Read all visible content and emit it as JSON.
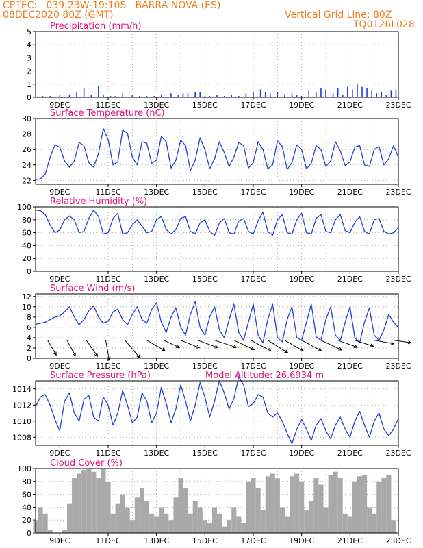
{
  "header": {
    "line1": "CPTEC:   039:23W-19:10S   BARRA NOVA (ES)",
    "line2_left": "08DEC2020 80Z (GMT)",
    "line2_right": "Vertical Grid Line: 80Z",
    "code": "TQ0126L028"
  },
  "colors": {
    "header": "#f07d1e",
    "panel_title": "#e0127a",
    "line": "#1f3fd9",
    "cloud": "#a9a9a9",
    "grid": "#9a9a9a"
  },
  "chart_data": [
    {
      "id": "precip",
      "type": "bar",
      "title": "Precipitation (mm/h)",
      "xlim": [
        0,
        15
      ],
      "ylim": [
        0,
        5
      ],
      "yticks": [
        0,
        1,
        2,
        3,
        4,
        5
      ],
      "xticks": [
        1,
        3,
        5,
        7,
        9,
        11,
        13,
        15
      ],
      "xticklabels": [
        "9DEC",
        "11DEC",
        "13DEC",
        "15DEC",
        "17DEC",
        "19DEC",
        "21DEC",
        "23DEC"
      ],
      "x": [
        0.3,
        0.6,
        1.0,
        1.4,
        1.7,
        2.0,
        2.3,
        2.6,
        2.8,
        3.1,
        3.3,
        3.6,
        4.0,
        4.3,
        4.6,
        4.9,
        5.2,
        5.6,
        5.9,
        6.1,
        6.3,
        6.6,
        6.8,
        7.0,
        7.2,
        7.5,
        7.8,
        8.1,
        8.4,
        8.7,
        9.0,
        9.3,
        9.5,
        9.7,
        10.0,
        10.3,
        10.6,
        10.8,
        11.0,
        11.3,
        11.6,
        11.8,
        12.0,
        12.3,
        12.5,
        12.7,
        12.9,
        13.1,
        13.3,
        13.5,
        13.7,
        13.9,
        14.1,
        14.3,
        14.5,
        14.7,
        14.9
      ],
      "values": [
        0.1,
        0.1,
        0.2,
        0.2,
        0.4,
        0.7,
        0.2,
        0.9,
        0.2,
        0.1,
        0.1,
        0.3,
        0.2,
        0.1,
        0.1,
        0.1,
        0.2,
        0.3,
        0.2,
        0.3,
        0.3,
        0.4,
        0.4,
        0.1,
        0.1,
        0.2,
        0.1,
        0.2,
        0.1,
        0.3,
        0.4,
        0.6,
        0.4,
        0.3,
        0.4,
        0.2,
        0.3,
        0.2,
        0.1,
        0.5,
        0.4,
        0.7,
        0.6,
        0.3,
        0.7,
        0.2,
        0.8,
        0.6,
        1.0,
        0.8,
        0.7,
        0.5,
        0.3,
        0.4,
        0.2,
        0.5,
        0.6
      ]
    },
    {
      "id": "temp",
      "type": "line",
      "title": "Surface Temperature (nC)",
      "xlim": [
        0,
        15
      ],
      "ylim": [
        21.5,
        30
      ],
      "yticks": [
        22,
        24,
        26,
        28,
        30
      ],
      "xticks": [
        1,
        3,
        5,
        7,
        9,
        11,
        13,
        15
      ],
      "xticklabels": [
        "9DEC",
        "11DEC",
        "13DEC",
        "15DEC",
        "17DEC",
        "19DEC",
        "21DEC",
        "23DEC"
      ],
      "x": [
        0.0,
        0.2,
        0.4,
        0.6,
        0.8,
        1.0,
        1.2,
        1.4,
        1.6,
        1.8,
        2.0,
        2.2,
        2.4,
        2.6,
        2.8,
        3.0,
        3.2,
        3.4,
        3.6,
        3.8,
        4.0,
        4.2,
        4.4,
        4.6,
        4.8,
        5.0,
        5.2,
        5.4,
        5.6,
        5.8,
        6.0,
        6.2,
        6.4,
        6.6,
        6.8,
        7.0,
        7.2,
        7.4,
        7.6,
        7.8,
        8.0,
        8.2,
        8.4,
        8.6,
        8.8,
        9.0,
        9.2,
        9.4,
        9.6,
        9.8,
        10.0,
        10.2,
        10.4,
        10.6,
        10.8,
        11.0,
        11.2,
        11.4,
        11.6,
        11.8,
        12.0,
        12.2,
        12.4,
        12.6,
        12.8,
        13.0,
        13.2,
        13.4,
        13.6,
        13.8,
        14.0,
        14.2,
        14.4,
        14.6,
        14.8,
        15.0
      ],
      "values": [
        22.1,
        22.2,
        22.8,
        25.0,
        26.6,
        26.3,
        24.5,
        23.7,
        24.5,
        26.9,
        26.5,
        24.3,
        23.7,
        25.5,
        28.7,
        27.3,
        24.0,
        24.4,
        28.5,
        28.1,
        25.0,
        24.0,
        27.0,
        26.8,
        24.2,
        24.6,
        27.7,
        27.0,
        23.6,
        24.6,
        27.2,
        26.5,
        23.3,
        24.6,
        27.5,
        26.0,
        23.5,
        24.8,
        27.0,
        25.6,
        23.8,
        25.0,
        26.9,
        26.5,
        23.6,
        24.3,
        27.0,
        26.0,
        23.5,
        24.0,
        27.1,
        26.4,
        23.4,
        24.3,
        26.6,
        26.0,
        23.5,
        24.2,
        26.5,
        26.0,
        23.8,
        24.5,
        27.0,
        25.8,
        23.9,
        24.4,
        26.3,
        26.5,
        24.0,
        23.8,
        26.0,
        26.4,
        24.0,
        24.8,
        26.5,
        25.0
      ]
    },
    {
      "id": "rh",
      "type": "line",
      "title": "Relative Humidity (%)",
      "xlim": [
        0,
        15
      ],
      "ylim": [
        0,
        100
      ],
      "yticks": [
        0,
        20,
        40,
        60,
        80,
        100
      ],
      "xticks": [
        1,
        3,
        5,
        7,
        9,
        11,
        13,
        15
      ],
      "xticklabels": [
        "9DEC",
        "11DEC",
        "13DEC",
        "15DEC",
        "17DEC",
        "19DEC",
        "21DEC",
        "23DEC"
      ],
      "x": [
        0.0,
        0.2,
        0.4,
        0.6,
        0.8,
        1.0,
        1.2,
        1.4,
        1.6,
        1.8,
        2.0,
        2.2,
        2.4,
        2.6,
        2.8,
        3.0,
        3.2,
        3.4,
        3.6,
        3.8,
        4.0,
        4.2,
        4.4,
        4.6,
        4.8,
        5.0,
        5.2,
        5.4,
        5.6,
        5.8,
        6.0,
        6.2,
        6.4,
        6.6,
        6.8,
        7.0,
        7.2,
        7.4,
        7.6,
        7.8,
        8.0,
        8.2,
        8.4,
        8.6,
        8.8,
        9.0,
        9.2,
        9.4,
        9.6,
        9.8,
        10.0,
        10.2,
        10.4,
        10.6,
        10.8,
        11.0,
        11.2,
        11.4,
        11.6,
        11.8,
        12.0,
        12.2,
        12.4,
        12.6,
        12.8,
        13.0,
        13.2,
        13.4,
        13.6,
        13.8,
        14.0,
        14.2,
        14.4,
        14.6,
        14.8,
        15.0
      ],
      "values": [
        95,
        94,
        88,
        72,
        60,
        64,
        80,
        86,
        80,
        60,
        62,
        82,
        95,
        85,
        58,
        60,
        82,
        90,
        58,
        60,
        72,
        80,
        70,
        60,
        62,
        80,
        85,
        65,
        58,
        65,
        82,
        85,
        62,
        58,
        75,
        80,
        62,
        56,
        75,
        82,
        60,
        58,
        78,
        82,
        62,
        58,
        78,
        92,
        62,
        56,
        80,
        88,
        60,
        58,
        80,
        90,
        60,
        58,
        82,
        88,
        62,
        60,
        80,
        88,
        63,
        60,
        76,
        85,
        62,
        58,
        80,
        82,
        62,
        58,
        60,
        68
      ]
    },
    {
      "id": "wind",
      "type": "line",
      "title": "Surface Wind (m/s)",
      "xlim": [
        0,
        15
      ],
      "ylim": [
        0,
        12.5
      ],
      "yticks": [
        0,
        2,
        4,
        6,
        8,
        10,
        12
      ],
      "xticks": [
        1,
        3,
        5,
        7,
        9,
        11,
        13,
        15
      ],
      "xticklabels": [
        "9DEC",
        "11DEC",
        "13DEC",
        "15DEC",
        "17DEC",
        "19DEC",
        "21DEC",
        "23DEC"
      ],
      "x": [
        0.0,
        0.2,
        0.4,
        0.6,
        0.8,
        1.0,
        1.2,
        1.4,
        1.6,
        1.8,
        2.0,
        2.2,
        2.4,
        2.6,
        2.8,
        3.0,
        3.2,
        3.4,
        3.6,
        3.8,
        4.0,
        4.2,
        4.4,
        4.6,
        4.8,
        5.0,
        5.2,
        5.4,
        5.6,
        5.8,
        6.0,
        6.2,
        6.4,
        6.6,
        6.8,
        7.0,
        7.2,
        7.4,
        7.6,
        7.8,
        8.0,
        8.2,
        8.4,
        8.6,
        8.8,
        9.0,
        9.2,
        9.4,
        9.6,
        9.8,
        10.0,
        10.2,
        10.4,
        10.6,
        10.8,
        11.0,
        11.2,
        11.4,
        11.6,
        11.8,
        12.0,
        12.2,
        12.4,
        12.6,
        12.8,
        13.0,
        13.2,
        13.4,
        13.6,
        13.8,
        14.0,
        14.2,
        14.4,
        14.6,
        14.8,
        15.0
      ],
      "values": [
        6.6,
        6.8,
        7.0,
        7.5,
        8.0,
        8.2,
        9.0,
        10.0,
        8.0,
        6.5,
        7.5,
        9.2,
        10.2,
        8.0,
        6.8,
        7.2,
        9.0,
        9.5,
        7.5,
        6.5,
        8.5,
        10.0,
        7.5,
        6.8,
        9.5,
        10.8,
        7.0,
        5.0,
        8.0,
        9.8,
        6.0,
        4.5,
        8.5,
        11.0,
        6.0,
        4.5,
        8.0,
        10.0,
        5.5,
        4.0,
        7.5,
        10.5,
        5.0,
        3.5,
        7.0,
        10.5,
        4.5,
        3.0,
        7.5,
        10.5,
        4.0,
        3.2,
        7.5,
        10.0,
        4.0,
        3.5,
        7.0,
        10.5,
        4.2,
        3.5,
        7.5,
        10.0,
        4.5,
        3.5,
        7.0,
        10.0,
        4.0,
        3.0,
        7.0,
        9.8,
        4.5,
        3.5,
        5.5,
        8.5,
        7.0,
        6.0
      ],
      "arrows": {
        "x": [
          0.5,
          1.3,
          2.1,
          2.9,
          3.7,
          4.6,
          5.3,
          6.0,
          6.7,
          7.4,
          8.2,
          8.9,
          9.6,
          10.3,
          11.0,
          11.8,
          12.5,
          13.2,
          14.0,
          14.8
        ],
        "base_y": 3.5,
        "speed": [
          6.0,
          6.2,
          6.8,
          7.0,
          8.0,
          7.2,
          6.0,
          7.0,
          7.5,
          8.0,
          7.8,
          8.0,
          8.2,
          7.5,
          7.8,
          8.0,
          7.2,
          6.8,
          7.0,
          6.2
        ],
        "dir_deg": [
          30,
          28,
          35,
          10,
          40,
          60,
          65,
          68,
          70,
          72,
          65,
          62,
          58,
          60,
          62,
          65,
          70,
          72,
          80,
          82
        ]
      }
    },
    {
      "id": "pressure",
      "type": "line",
      "title": "Surface Pressure (hPa)",
      "annotation": "Model Altitude: 26.6934 m",
      "xlim": [
        0,
        15
      ],
      "ylim": [
        1007,
        1015
      ],
      "yticks": [
        1008,
        1010,
        1012,
        1014
      ],
      "xticks": [
        1,
        3,
        5,
        7,
        9,
        11,
        13,
        15
      ],
      "xticklabels": [
        "9DEC",
        "11DEC",
        "13DEC",
        "15DEC",
        "17DEC",
        "19DEC",
        "21DEC",
        "23DEC"
      ],
      "x": [
        0.0,
        0.2,
        0.4,
        0.6,
        0.8,
        1.0,
        1.2,
        1.4,
        1.6,
        1.8,
        2.0,
        2.2,
        2.4,
        2.6,
        2.8,
        3.0,
        3.2,
        3.4,
        3.6,
        3.8,
        4.0,
        4.2,
        4.4,
        4.6,
        4.8,
        5.0,
        5.2,
        5.4,
        5.6,
        5.8,
        6.0,
        6.2,
        6.4,
        6.6,
        6.8,
        7.0,
        7.2,
        7.4,
        7.6,
        7.8,
        8.0,
        8.2,
        8.4,
        8.6,
        8.8,
        9.0,
        9.2,
        9.4,
        9.6,
        9.8,
        10.0,
        10.2,
        10.4,
        10.6,
        10.8,
        11.0,
        11.2,
        11.4,
        11.6,
        11.8,
        12.0,
        12.2,
        12.4,
        12.6,
        12.8,
        13.0,
        13.2,
        13.4,
        13.6,
        13.8,
        14.0,
        14.2,
        14.4,
        14.6,
        14.8,
        15.0
      ],
      "values": [
        1011.8,
        1013.0,
        1013.3,
        1012.0,
        1010.2,
        1008.8,
        1012.5,
        1013.5,
        1011.0,
        1010.0,
        1012.7,
        1013.2,
        1010.5,
        1010.0,
        1013.0,
        1012.0,
        1009.5,
        1011.0,
        1013.8,
        1012.0,
        1009.8,
        1010.5,
        1013.5,
        1012.5,
        1009.8,
        1011.0,
        1014.2,
        1012.2,
        1009.8,
        1011.5,
        1014.5,
        1012.5,
        1010.0,
        1012.0,
        1014.8,
        1013.0,
        1010.5,
        1012.5,
        1015.0,
        1013.5,
        1011.5,
        1012.8,
        1015.5,
        1014.5,
        1011.8,
        1012.2,
        1013.3,
        1013.0,
        1011.0,
        1010.5,
        1011.0,
        1010.0,
        1008.5,
        1007.2,
        1009.0,
        1010.2,
        1009.0,
        1007.6,
        1009.5,
        1010.3,
        1008.8,
        1007.8,
        1009.5,
        1010.5,
        1009.0,
        1008.0,
        1010.0,
        1011.2,
        1009.5,
        1008.0,
        1010.0,
        1011.0,
        1009.0,
        1008.2,
        1009.0,
        1010.3
      ]
    },
    {
      "id": "cloud",
      "type": "area",
      "title": "Cloud Cover (%)",
      "xlim": [
        0,
        15
      ],
      "ylim": [
        0,
        100
      ],
      "yticks": [
        0,
        20,
        40,
        60,
        80,
        100
      ],
      "xticks": [
        1,
        3,
        5,
        7,
        9,
        11,
        13,
        15
      ],
      "xticklabels": [
        "9DEC",
        "11DEC",
        "13DEC",
        "15DEC",
        "17DEC",
        "19DEC",
        "21DEC",
        "23DEC"
      ],
      "x": [
        0.0,
        0.2,
        0.4,
        0.6,
        0.8,
        1.0,
        1.2,
        1.4,
        1.6,
        1.8,
        2.0,
        2.2,
        2.4,
        2.6,
        2.8,
        3.0,
        3.2,
        3.4,
        3.6,
        3.8,
        4.0,
        4.2,
        4.4,
        4.6,
        4.8,
        5.0,
        5.2,
        5.4,
        5.6,
        5.8,
        6.0,
        6.2,
        6.4,
        6.6,
        6.8,
        7.0,
        7.2,
        7.4,
        7.6,
        7.8,
        8.0,
        8.2,
        8.4,
        8.6,
        8.8,
        9.0,
        9.2,
        9.4,
        9.6,
        9.8,
        10.0,
        10.2,
        10.4,
        10.6,
        10.8,
        11.0,
        11.2,
        11.4,
        11.6,
        11.8,
        12.0,
        12.2,
        12.4,
        12.6,
        12.8,
        13.0,
        13.2,
        13.4,
        13.6,
        13.8,
        14.0,
        14.2,
        14.4,
        14.6,
        14.8,
        15.0
      ],
      "values": [
        20,
        40,
        30,
        5,
        0,
        0,
        5,
        45,
        85,
        92,
        98,
        100,
        95,
        85,
        100,
        80,
        30,
        45,
        60,
        40,
        20,
        55,
        70,
        50,
        30,
        25,
        40,
        30,
        20,
        55,
        85,
        70,
        30,
        50,
        40,
        20,
        15,
        40,
        30,
        10,
        20,
        40,
        25,
        15,
        80,
        85,
        70,
        35,
        88,
        92,
        85,
        40,
        25,
        88,
        92,
        80,
        35,
        50,
        85,
        75,
        40,
        90,
        95,
        85,
        30,
        25,
        80,
        88,
        90,
        40,
        30,
        80,
        85,
        90,
        20,
        0
      ]
    }
  ]
}
